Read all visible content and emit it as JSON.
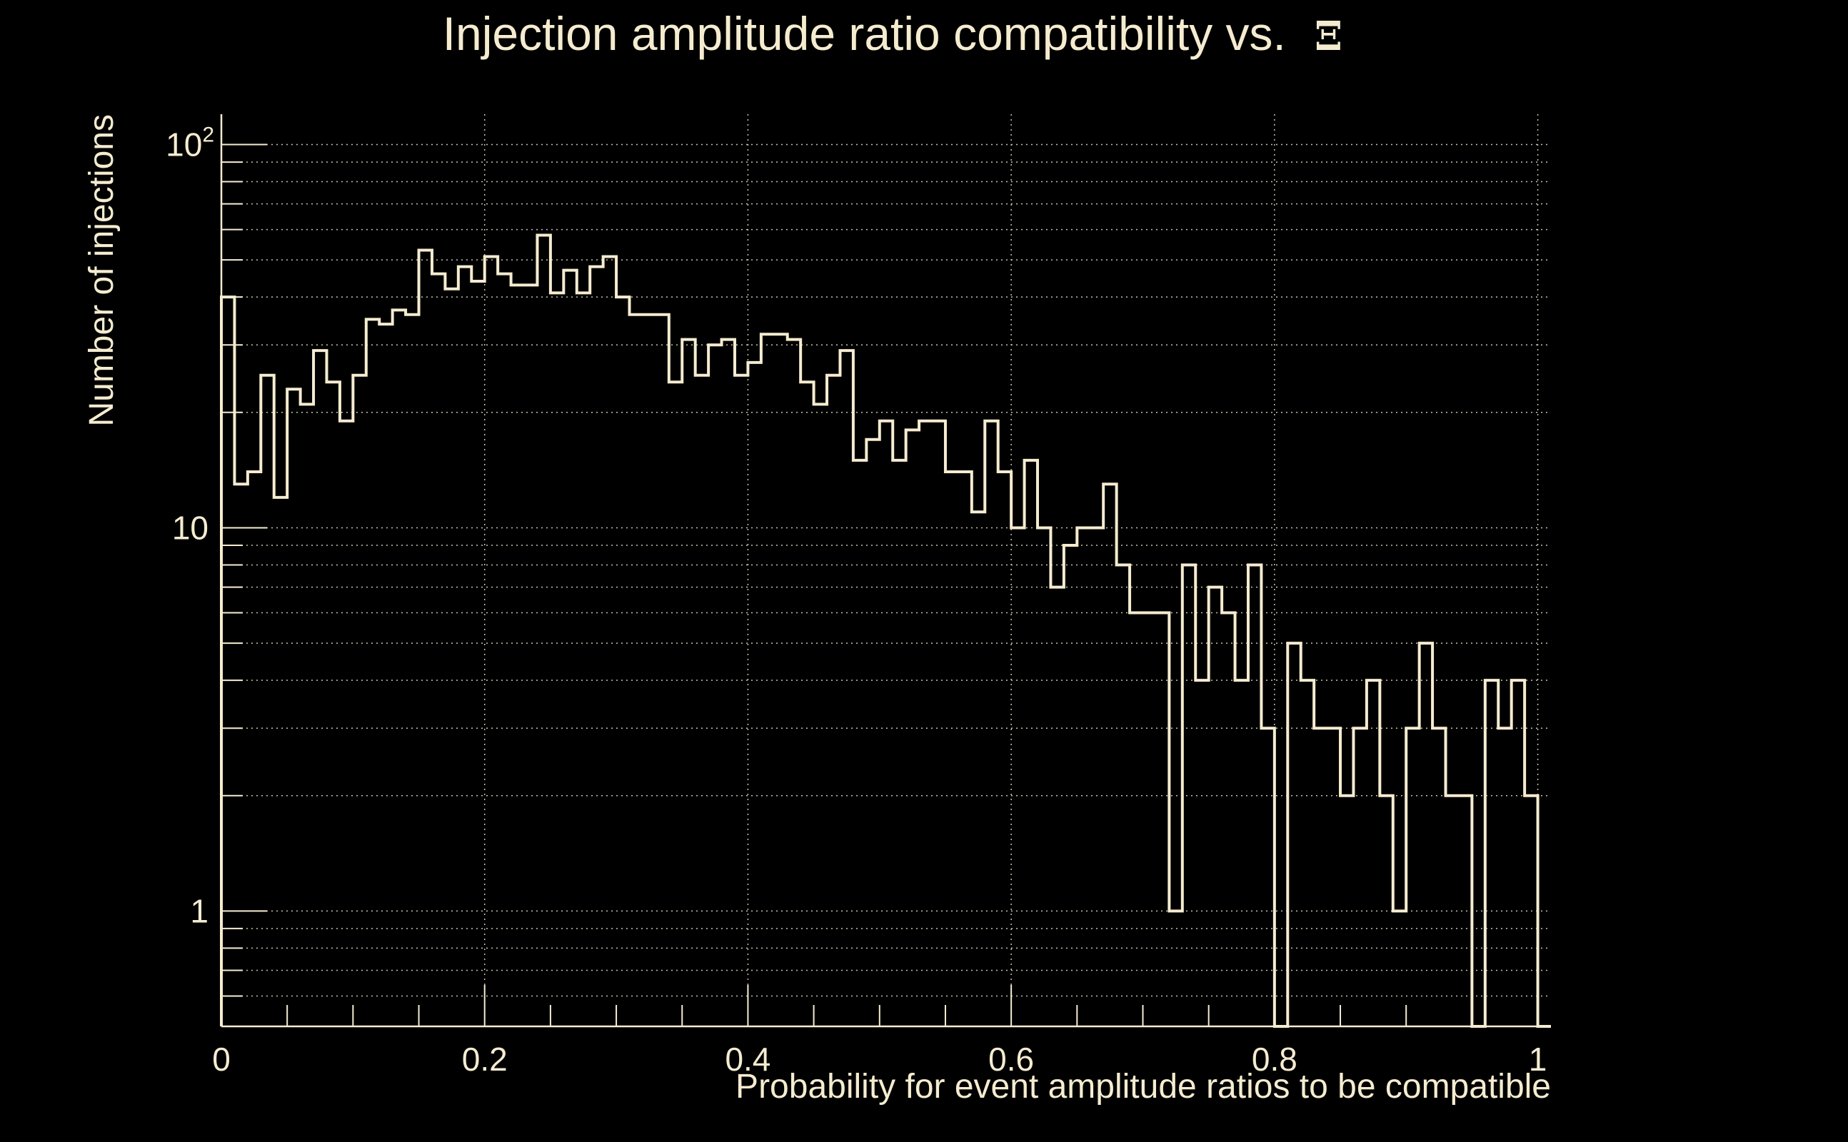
{
  "colors": {
    "background": "#000000",
    "foreground": "#f5ecd0",
    "grid": "#c8c2ae"
  },
  "chart_data": {
    "type": "histogram",
    "title": "Injection amplitude ratio compatibility vs.",
    "title_symbol": "Ξ",
    "xlabel": "Probability for event amplitude ratios to be compatible",
    "ylabel": "Number of injections",
    "y_scale": "log",
    "xlim": [
      0,
      1.01
    ],
    "ylim": [
      0.5,
      120
    ],
    "x_ticks": [
      {
        "value": 0,
        "label": "0"
      },
      {
        "value": 0.2,
        "label": "0.2"
      },
      {
        "value": 0.4,
        "label": "0.4"
      },
      {
        "value": 0.6,
        "label": "0.6"
      },
      {
        "value": 0.8,
        "label": "0.8"
      },
      {
        "value": 1,
        "label": "1"
      }
    ],
    "y_ticks": [
      {
        "value": 1,
        "label": "1",
        "exp": ""
      },
      {
        "value": 10,
        "label": "10",
        "exp": ""
      },
      {
        "value": 100,
        "label": "10",
        "exp": "2"
      }
    ],
    "bin_width": 0.01,
    "bin_start": 0,
    "counts": [
      40,
      13,
      14,
      25,
      12,
      23,
      21,
      29,
      24,
      19,
      25,
      35,
      34,
      37,
      36,
      53,
      46,
      42,
      48,
      44,
      51,
      46,
      43,
      43,
      58,
      41,
      47,
      41,
      48,
      51,
      40,
      36,
      36,
      36,
      24,
      31,
      25,
      30,
      31,
      25,
      27,
      32,
      32,
      31,
      24,
      21,
      25,
      29,
      15,
      17,
      19,
      15,
      18,
      19,
      19,
      14,
      14,
      11,
      19,
      14,
      10,
      15,
      10,
      7,
      9,
      10,
      10,
      13,
      8,
      6,
      6,
      6,
      1,
      8,
      4,
      7,
      6,
      4,
      8,
      3,
      0,
      5,
      4,
      3,
      3,
      2,
      3,
      4,
      2,
      1,
      3,
      5,
      3,
      2,
      2,
      0,
      4,
      3,
      4,
      2,
      0
    ]
  }
}
